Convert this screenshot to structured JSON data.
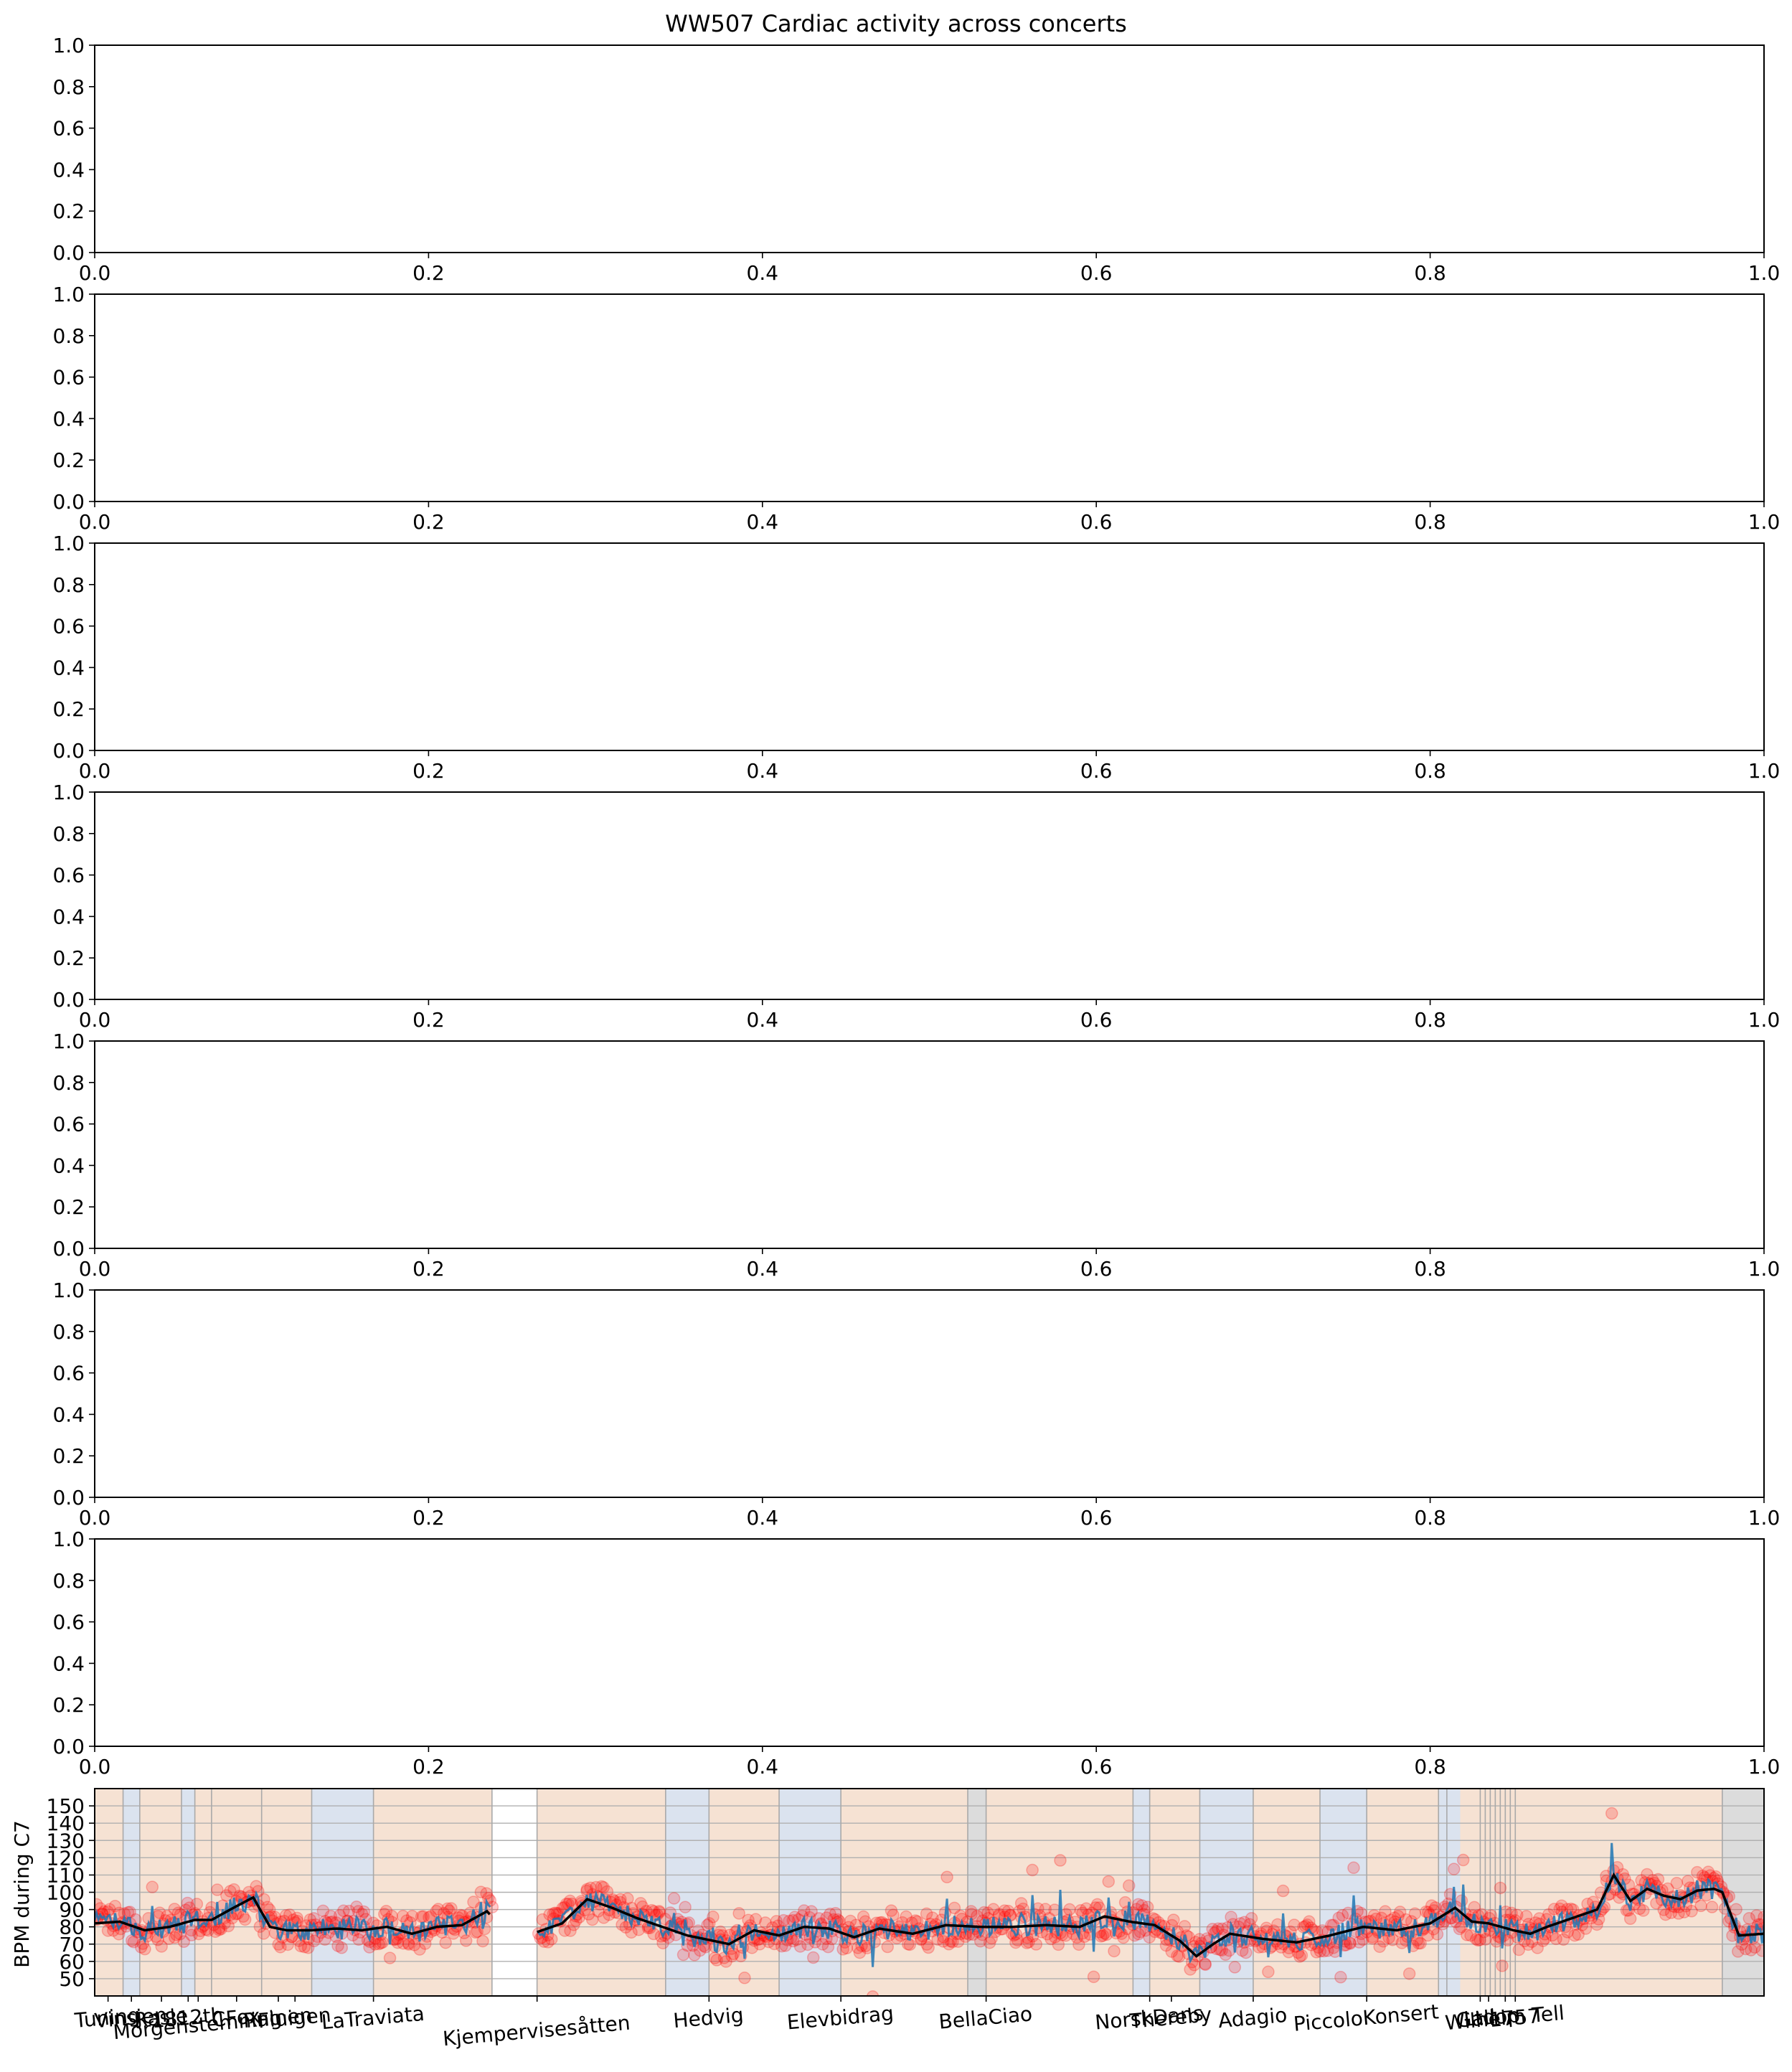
{
  "chart_data": [
    {
      "type": "line",
      "title": "WW507 Cardiac activity across concerts",
      "xlim": [
        0,
        1
      ],
      "ylim": [
        0,
        1
      ],
      "xticks": [
        "0.0",
        "0.2",
        "0.4",
        "0.6",
        "0.8",
        "1.0"
      ],
      "yticks": [
        "0.0",
        "0.2",
        "0.4",
        "0.6",
        "0.8",
        "1.0"
      ],
      "series": []
    },
    {
      "type": "line",
      "title": "",
      "xlim": [
        0,
        1
      ],
      "ylim": [
        0,
        1
      ],
      "xticks": [
        "0.0",
        "0.2",
        "0.4",
        "0.6",
        "0.8",
        "1.0"
      ],
      "yticks": [
        "0.0",
        "0.2",
        "0.4",
        "0.6",
        "0.8",
        "1.0"
      ],
      "series": []
    },
    {
      "type": "line",
      "title": "",
      "xlim": [
        0,
        1
      ],
      "ylim": [
        0,
        1
      ],
      "xticks": [
        "0.0",
        "0.2",
        "0.4",
        "0.6",
        "0.8",
        "1.0"
      ],
      "yticks": [
        "0.0",
        "0.2",
        "0.4",
        "0.6",
        "0.8",
        "1.0"
      ],
      "series": []
    },
    {
      "type": "line",
      "title": "",
      "xlim": [
        0,
        1
      ],
      "ylim": [
        0,
        1
      ],
      "xticks": [
        "0.0",
        "0.2",
        "0.4",
        "0.6",
        "0.8",
        "1.0"
      ],
      "yticks": [
        "0.0",
        "0.2",
        "0.4",
        "0.6",
        "0.8",
        "1.0"
      ],
      "series": []
    },
    {
      "type": "line",
      "title": "",
      "xlim": [
        0,
        1
      ],
      "ylim": [
        0,
        1
      ],
      "xticks": [
        "0.0",
        "0.2",
        "0.4",
        "0.6",
        "0.8",
        "1.0"
      ],
      "yticks": [
        "0.0",
        "0.2",
        "0.4",
        "0.6",
        "0.8",
        "1.0"
      ],
      "series": []
    },
    {
      "type": "line",
      "title": "",
      "xlim": [
        0,
        1
      ],
      "ylim": [
        0,
        1
      ],
      "xticks": [
        "0.0",
        "0.2",
        "0.4",
        "0.6",
        "0.8",
        "1.0"
      ],
      "yticks": [
        "0.0",
        "0.2",
        "0.4",
        "0.6",
        "0.8",
        "1.0"
      ],
      "series": []
    },
    {
      "type": "line",
      "title": "",
      "xlim": [
        0,
        1
      ],
      "ylim": [
        0,
        1
      ],
      "xticks": [
        "0.0",
        "0.2",
        "0.4",
        "0.6",
        "0.8",
        "1.0"
      ],
      "yticks": [
        "0.0",
        "0.2",
        "0.4",
        "0.6",
        "0.8",
        "1.0"
      ],
      "series": []
    },
    {
      "type": "scatter",
      "title": "",
      "xlabel": "",
      "ylabel": "BPM during C7",
      "ylim": [
        40,
        160
      ],
      "yticks": [
        50,
        60,
        70,
        80,
        90,
        100,
        110,
        120,
        130,
        140,
        150
      ],
      "grid": true,
      "xlim": [
        0,
        1
      ],
      "segment_shades": [
        {
          "from": 0.0,
          "to": 0.017,
          "color": "#f6e2d3"
        },
        {
          "from": 0.017,
          "to": 0.027,
          "color": "#dbe3ef"
        },
        {
          "from": 0.027,
          "to": 0.052,
          "color": "#f6e2d3"
        },
        {
          "from": 0.052,
          "to": 0.06,
          "color": "#dbe3ef"
        },
        {
          "from": 0.06,
          "to": 0.07,
          "color": "#f6e2d3"
        },
        {
          "from": 0.07,
          "to": 0.13,
          "color": "#f6e2d3"
        },
        {
          "from": 0.13,
          "to": 0.167,
          "color": "#dbe3ef"
        },
        {
          "from": 0.167,
          "to": 0.238,
          "color": "#f6e2d3"
        },
        {
          "from": 0.238,
          "to": 0.265,
          "color": "#ffffff"
        },
        {
          "from": 0.265,
          "to": 0.342,
          "color": "#f6e2d3"
        },
        {
          "from": 0.342,
          "to": 0.368,
          "color": "#dbe3ef"
        },
        {
          "from": 0.368,
          "to": 0.41,
          "color": "#f6e2d3"
        },
        {
          "from": 0.41,
          "to": 0.447,
          "color": "#dbe3ef"
        },
        {
          "from": 0.447,
          "to": 0.523,
          "color": "#f6e2d3"
        },
        {
          "from": 0.523,
          "to": 0.534,
          "color": "#dcdcdc"
        },
        {
          "from": 0.534,
          "to": 0.622,
          "color": "#f6e2d3"
        },
        {
          "from": 0.622,
          "to": 0.632,
          "color": "#dbe3ef"
        },
        {
          "from": 0.632,
          "to": 0.662,
          "color": "#f6e2d3"
        },
        {
          "from": 0.662,
          "to": 0.694,
          "color": "#dbe3ef"
        },
        {
          "from": 0.694,
          "to": 0.734,
          "color": "#f6e2d3"
        },
        {
          "from": 0.734,
          "to": 0.762,
          "color": "#dbe3ef"
        },
        {
          "from": 0.762,
          "to": 0.805,
          "color": "#f6e2d3"
        },
        {
          "from": 0.805,
          "to": 0.818,
          "color": "#dbe3ef"
        },
        {
          "from": 0.818,
          "to": 0.975,
          "color": "#f6e2d3"
        },
        {
          "from": 0.975,
          "to": 1.0,
          "color": "#dcdcdc"
        }
      ],
      "boundaries": [
        0.017,
        0.027,
        0.052,
        0.06,
        0.07,
        0.1,
        0.13,
        0.167,
        0.238,
        0.265,
        0.342,
        0.368,
        0.41,
        0.447,
        0.523,
        0.534,
        0.622,
        0.632,
        0.662,
        0.694,
        0.734,
        0.762,
        0.805,
        0.81,
        0.83,
        0.833,
        0.836,
        0.839,
        0.842,
        0.845,
        0.848,
        0.851,
        0.975
      ],
      "segments": [
        {
          "label": "Tuning",
          "x": 0.008
        },
        {
          "label": "Vinsjen",
          "x": 0.022
        },
        {
          "label": "Rasle",
          "x": 0.04
        },
        {
          "label": "1812th",
          "x": 0.056
        },
        {
          "label": "Morgenstemning",
          "x": 0.062
        },
        {
          "label": "CFox",
          "x": 0.085
        },
        {
          "label": "Ruinen",
          "x": 0.11
        },
        {
          "label": "Fluigen",
          "x": 0.12
        },
        {
          "label": "LaTraviata",
          "x": 0.167
        },
        {
          "label": "Kjempervisesåtten",
          "x": 0.265
        },
        {
          "label": "Hedvig",
          "x": 0.368
        },
        {
          "label": "Elevbidrag",
          "x": 0.447
        },
        {
          "label": "BellaCiao",
          "x": 0.534
        },
        {
          "label": "NorskDans",
          "x": 0.632
        },
        {
          "label": "Thereby",
          "x": 0.645
        },
        {
          "label": "Adagio",
          "x": 0.694
        },
        {
          "label": "PiccoloKonsert",
          "x": 0.762
        },
        {
          "label": "Ltd",
          "x": 0.83
        },
        {
          "label": "Gallop",
          "x": 0.835
        },
        {
          "label": "Wilhelm Tell",
          "x": 0.845
        },
        {
          "label": "1757",
          "x": 0.851
        }
      ],
      "smoothed_bpm": {
        "x": [
          0.0,
          0.015,
          0.03,
          0.045,
          0.06,
          0.07,
          0.085,
          0.095,
          0.105,
          0.115,
          0.13,
          0.145,
          0.16,
          0.175,
          0.19,
          0.205,
          0.22,
          0.235,
          0.25,
          0.265,
          0.28,
          0.295,
          0.31,
          0.325,
          0.34,
          0.355,
          0.37,
          0.38,
          0.395,
          0.41,
          0.425,
          0.44,
          0.455,
          0.47,
          0.49,
          0.51,
          0.53,
          0.55,
          0.57,
          0.59,
          0.605,
          0.62,
          0.635,
          0.65,
          0.66,
          0.67,
          0.68,
          0.7,
          0.72,
          0.74,
          0.76,
          0.78,
          0.8,
          0.815,
          0.825,
          0.835,
          0.85,
          0.86,
          0.87,
          0.885,
          0.9,
          0.91,
          0.92,
          0.93,
          0.94,
          0.95,
          0.96,
          0.97,
          0.975,
          0.985,
          1.0
        ],
        "y": [
          82,
          83,
          78,
          80,
          84,
          84,
          92,
          97,
          80,
          78,
          78,
          79,
          78,
          80,
          76,
          80,
          81,
          89,
          73,
          77,
          82,
          96,
          91,
          85,
          80,
          75,
          72,
          70,
          78,
          75,
          80,
          79,
          74,
          79,
          76,
          81,
          80,
          80,
          81,
          80,
          86,
          83,
          81,
          72,
          63,
          70,
          76,
          73,
          71,
          75,
          80,
          78,
          82,
          91,
          83,
          82,
          78,
          76,
          80,
          85,
          90,
          110,
          95,
          102,
          98,
          96,
          101,
          102,
          100,
          75,
          76
        ]
      },
      "series": [
        {
          "name": "",
          "color": "#ff0000",
          "marker": "circle",
          "alpha": 0.2
        },
        {
          "name": "",
          "color": "#1f77b4",
          "style": "line"
        },
        {
          "name": "",
          "color": "#000000",
          "style": "line"
        }
      ]
    }
  ]
}
